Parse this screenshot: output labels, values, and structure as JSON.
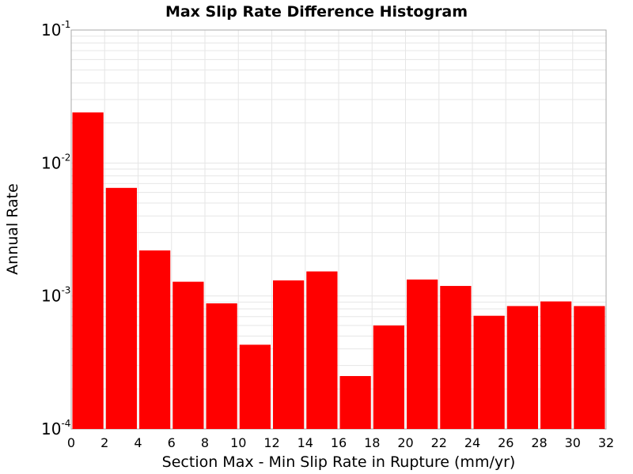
{
  "chart_data": {
    "type": "bar",
    "title": "Max Slip Rate Difference Histogram",
    "xlabel": "Section Max - Min Slip Rate in Rupture (mm/yr)",
    "ylabel": "Annual Rate",
    "yscale": "log",
    "xlim": [
      0,
      32
    ],
    "ylim": [
      0.0001,
      0.1
    ],
    "bin_width": 2,
    "x_ticks": [
      0,
      2,
      4,
      6,
      8,
      10,
      12,
      14,
      16,
      18,
      20,
      22,
      24,
      26,
      28,
      30,
      32
    ],
    "y_ticks": [
      {
        "base": "10",
        "exp": "-4",
        "value": 0.0001
      },
      {
        "base": "10",
        "exp": "-3",
        "value": 0.001
      },
      {
        "base": "10",
        "exp": "-2",
        "value": 0.01
      },
      {
        "base": "10",
        "exp": "-1",
        "value": 0.1
      }
    ],
    "bins": [
      {
        "x": 1,
        "value": 0.024
      },
      {
        "x": 3,
        "value": 0.0065
      },
      {
        "x": 5,
        "value": 0.0022
      },
      {
        "x": 7,
        "value": 0.00128
      },
      {
        "x": 9,
        "value": 0.00088
      },
      {
        "x": 11,
        "value": 0.00043
      },
      {
        "x": 13,
        "value": 0.00131
      },
      {
        "x": 15,
        "value": 0.00153
      },
      {
        "x": 17,
        "value": 0.00025
      },
      {
        "x": 19,
        "value": 0.0006
      },
      {
        "x": 21,
        "value": 0.00133
      },
      {
        "x": 23,
        "value": 0.00119
      },
      {
        "x": 25,
        "value": 0.00071
      },
      {
        "x": 27,
        "value": 0.00084
      },
      {
        "x": 29,
        "value": 0.00091
      },
      {
        "x": 31,
        "value": 0.00084
      }
    ],
    "grid": true,
    "bar_color": "#ff0000",
    "grid_color": "#e6e6e6",
    "axis_color": "#aaaaaa"
  }
}
